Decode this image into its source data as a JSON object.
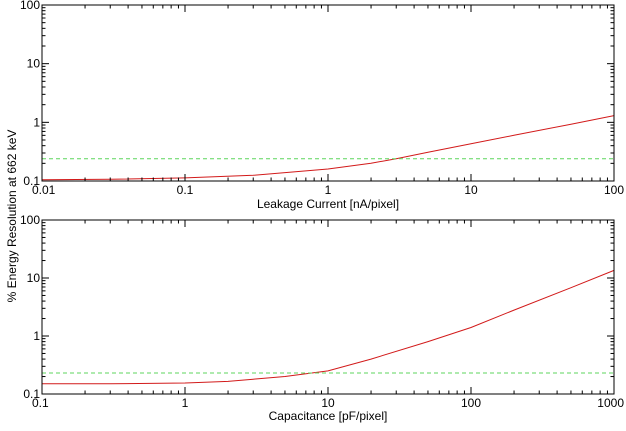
{
  "shared_ylabel": "% Energy Resolution at 662 keV",
  "colors": {
    "curve": "#d21a1a",
    "reference": "#5cd65c",
    "frame": "#000000"
  },
  "chart_data": [
    {
      "type": "line",
      "xlabel": "Leakage Current [nA/pixel]",
      "xscale": "log",
      "yscale": "log",
      "xlim": [
        0.01,
        100
      ],
      "ylim": [
        0.1,
        100
      ],
      "xticks": [
        "0.01",
        "0.1",
        "1",
        "10",
        "100"
      ],
      "yticks": [
        "0.1",
        "1",
        "10",
        "100"
      ],
      "grid": false,
      "series": [
        {
          "style": "solid",
          "color": "#d21a1a",
          "x": [
            0.01,
            0.03,
            0.1,
            0.3,
            1,
            2,
            3,
            5,
            10,
            20,
            50,
            100
          ],
          "y": [
            0.105,
            0.107,
            0.113,
            0.125,
            0.16,
            0.2,
            0.24,
            0.31,
            0.43,
            0.6,
            0.93,
            1.3
          ]
        },
        {
          "style": "dashed",
          "color": "#5cd65c",
          "x": [
            0.01,
            100
          ],
          "y": [
            0.24,
            0.24
          ]
        }
      ]
    },
    {
      "type": "line",
      "xlabel": "Capacitance [pF/pixel]",
      "xscale": "log",
      "yscale": "log",
      "xlim": [
        0.1,
        1000
      ],
      "ylim": [
        0.1,
        100
      ],
      "xticks": [
        "0.1",
        "1",
        "10",
        "100",
        "1000"
      ],
      "yticks": [
        "0.1",
        "1",
        "10",
        "100"
      ],
      "grid": false,
      "series": [
        {
          "style": "solid",
          "color": "#d21a1a",
          "x": [
            0.1,
            0.3,
            1,
            2,
            3,
            5,
            10,
            20,
            50,
            100,
            200,
            500,
            1000
          ],
          "y": [
            0.15,
            0.15,
            0.155,
            0.165,
            0.18,
            0.2,
            0.25,
            0.4,
            0.8,
            1.4,
            2.8,
            6.8,
            13.5
          ]
        },
        {
          "style": "dashed",
          "color": "#5cd65c",
          "x": [
            0.1,
            1000
          ],
          "y": [
            0.23,
            0.23
          ]
        }
      ]
    }
  ]
}
